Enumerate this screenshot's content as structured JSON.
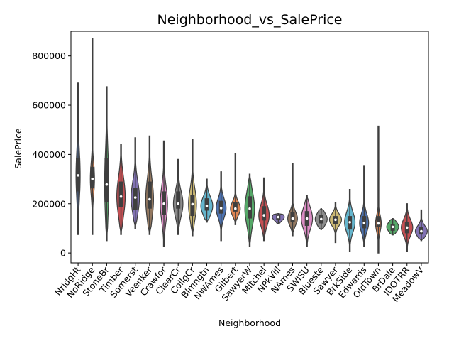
{
  "chart_data": {
    "type": "violin",
    "title": "Neighborhood_vs_SalePrice",
    "xlabel": "Neighborhood",
    "ylabel": "SalePrice",
    "ylim": [
      -40000,
      900000
    ],
    "yticks": [
      0,
      200000,
      400000,
      600000,
      800000
    ],
    "grid": false,
    "legend": "none",
    "categories": [
      "NridgHt",
      "NoRidge",
      "StoneBr",
      "Timber",
      "Somerst",
      "Veenker",
      "Crawfor",
      "ClearCr",
      "CollgCr",
      "Blmngtn",
      "NWAmes",
      "Gilbert",
      "SawyerW",
      "Mitchel",
      "NPkVill",
      "NAmes",
      "SWISU",
      "Blueste",
      "Sawyer",
      "BrkSide",
      "Edwards",
      "OldTown",
      "BrDale",
      "IDOTRR",
      "MeadowV"
    ],
    "colors": [
      "#4c72b0",
      "#dd8452",
      "#55a868",
      "#c44e52",
      "#8172b3",
      "#937860",
      "#da8bc3",
      "#8c8c8c",
      "#ccb974",
      "#64b5cd",
      "#4c72b0",
      "#dd8452",
      "#55a868",
      "#c44e52",
      "#8172b3",
      "#937860",
      "#da8bc3",
      "#8c8c8c",
      "#ccb974",
      "#64b5cd",
      "#4c72b0",
      "#dd8452",
      "#55a868",
      "#c44e52",
      "#8172b3"
    ],
    "stats": [
      {
        "min": 75000,
        "q1": 250000,
        "median": 315000,
        "q3": 385000,
        "max": 690000
      },
      {
        "min": 75000,
        "q1": 262000,
        "median": 301000,
        "q3": 350000,
        "max": 870000
      },
      {
        "min": 50000,
        "q1": 205000,
        "median": 278000,
        "q3": 385000,
        "max": 675000
      },
      {
        "min": 75000,
        "q1": 185000,
        "median": 229000,
        "q3": 290000,
        "max": 440000
      },
      {
        "min": 100000,
        "q1": 175000,
        "median": 225000,
        "q3": 263000,
        "max": 468000
      },
      {
        "min": 75000,
        "q1": 180000,
        "median": 218000,
        "q3": 290000,
        "max": 475000
      },
      {
        "min": 25000,
        "q1": 155000,
        "median": 200000,
        "q3": 250000,
        "max": 455000
      },
      {
        "min": 75000,
        "q1": 180000,
        "median": 200000,
        "q3": 250000,
        "max": 380000
      },
      {
        "min": 70000,
        "q1": 150000,
        "median": 198000,
        "q3": 235000,
        "max": 462000
      },
      {
        "min": 125000,
        "q1": 172000,
        "median": 191000,
        "q3": 222000,
        "max": 300000
      },
      {
        "min": 50000,
        "q1": 160000,
        "median": 182000,
        "q3": 212000,
        "max": 330000
      },
      {
        "min": 115000,
        "q1": 168000,
        "median": 180000,
        "q3": 205000,
        "max": 405000
      },
      {
        "min": 25000,
        "q1": 140000,
        "median": 180000,
        "q3": 230000,
        "max": 320000
      },
      {
        "min": 50000,
        "q1": 132000,
        "median": 153000,
        "q3": 190000,
        "max": 305000
      },
      {
        "min": 118000,
        "q1": 135000,
        "median": 146000,
        "q3": 155000,
        "max": 160000
      },
      {
        "min": 70000,
        "q1": 127000,
        "median": 140000,
        "q3": 165000,
        "max": 365000
      },
      {
        "min": 25000,
        "q1": 110000,
        "median": 140000,
        "q3": 170000,
        "max": 233000
      },
      {
        "min": 95000,
        "q1": 120000,
        "median": 137500,
        "q3": 155000,
        "max": 180000
      },
      {
        "min": 42000,
        "q1": 118000,
        "median": 135000,
        "q3": 150000,
        "max": 205000
      },
      {
        "min": 5000,
        "q1": 95000,
        "median": 125000,
        "q3": 150000,
        "max": 258000
      },
      {
        "min": 25000,
        "q1": 100000,
        "median": 122000,
        "q3": 150000,
        "max": 355000
      },
      {
        "min": 0,
        "q1": 105000,
        "median": 120000,
        "q3": 150000,
        "max": 515000
      },
      {
        "min": 73000,
        "q1": 90000,
        "median": 106000,
        "q3": 118000,
        "max": 140000
      },
      {
        "min": 5000,
        "q1": 80000,
        "median": 103000,
        "q3": 125000,
        "max": 200000
      },
      {
        "min": 50000,
        "q1": 75000,
        "median": 88000,
        "q3": 105000,
        "max": 175000
      }
    ]
  }
}
